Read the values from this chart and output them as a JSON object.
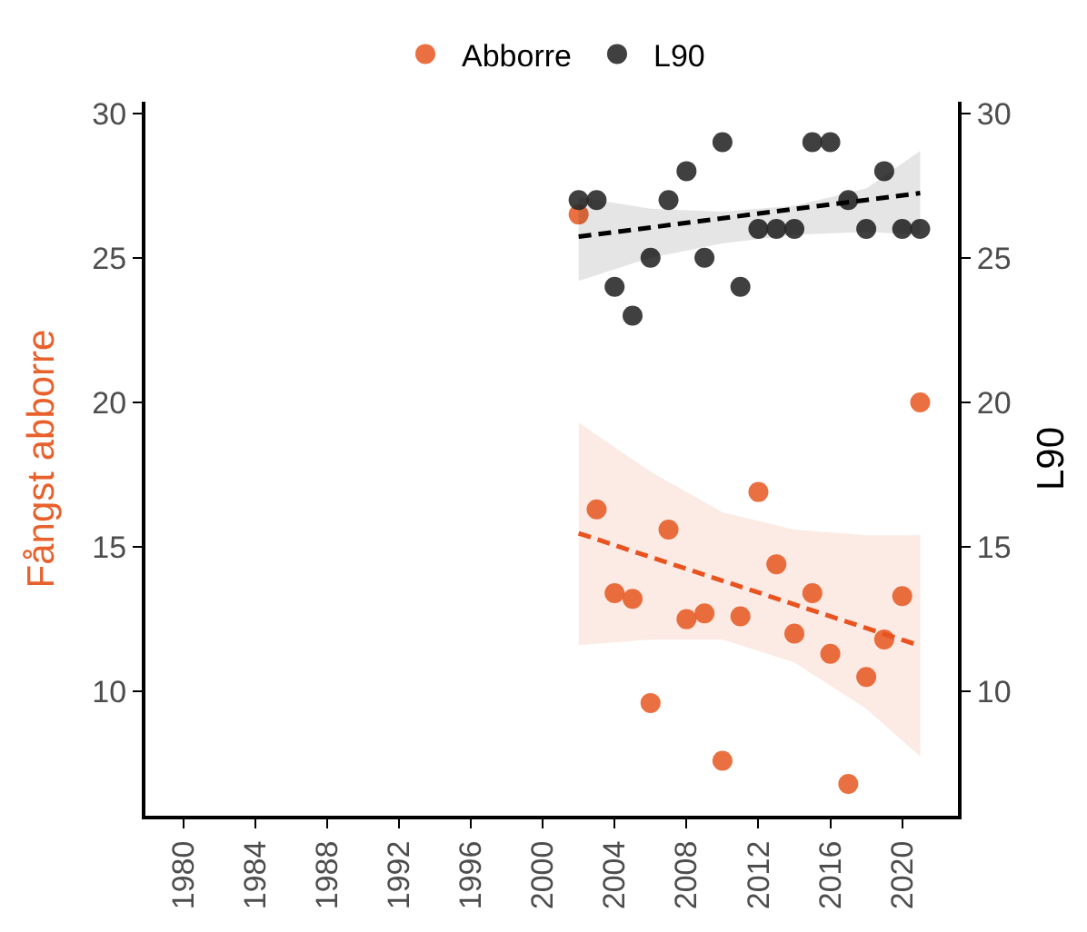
{
  "chart_data": {
    "type": "scatter",
    "ylabel": "Fångst abborre",
    "y2label": "L90",
    "x": [
      2002,
      2003,
      2004,
      2005,
      2006,
      2007,
      2008,
      2009,
      2010,
      2011,
      2012,
      2013,
      2014,
      2015,
      2016,
      2017,
      2018,
      2019,
      2020,
      2021
    ],
    "series": [
      {
        "name": "Abborre",
        "color": "#e8612c",
        "marker": "circle",
        "values": [
          26.5,
          16.3,
          13.4,
          13.2,
          9.6,
          15.6,
          12.5,
          12.7,
          7.6,
          12.6,
          16.9,
          14.4,
          12.0,
          13.4,
          11.3,
          6.8,
          10.5,
          11.8,
          13.3,
          20.0
        ]
      },
      {
        "name": "L90",
        "color": "#2b2b2b",
        "axis": "y2",
        "marker": "circle",
        "values": [
          27,
          27,
          24,
          23,
          25,
          27,
          28,
          25,
          29,
          24,
          26,
          26,
          26,
          29,
          29,
          27,
          26,
          28,
          26,
          26
        ]
      },
      {
        "type": "line",
        "color": "#e8531f",
        "line_style": "dashed",
        "x": [
          2002,
          2006,
          2010,
          2014,
          2018,
          2021
        ],
        "values": [
          15.47,
          14.65,
          13.83,
          13.01,
          12.19,
          11.58
        ],
        "lower": [
          11.6,
          11.8,
          11.8,
          11.0,
          9.4,
          7.75
        ],
        "upper": [
          19.3,
          17.6,
          16.2,
          15.6,
          15.4,
          15.4
        ]
      },
      {
        "type": "line",
        "color": "#000000",
        "line_style": "dashed",
        "axis": "y2",
        "x": [
          2002,
          2006,
          2010,
          2014,
          2018,
          2021
        ],
        "values": [
          25.73,
          26.05,
          26.37,
          26.69,
          27.0,
          27.24
        ],
        "lower": [
          24.2,
          25.0,
          25.5,
          25.8,
          25.9,
          25.8
        ],
        "upper": [
          27.1,
          26.7,
          26.6,
          26.8,
          27.4,
          28.7
        ]
      }
    ],
    "xlim": [
      1977.9,
      2023.1
    ],
    "xticks": [
      1980,
      1984,
      1988,
      1992,
      1996,
      2000,
      2004,
      2008,
      2012,
      2016,
      2020
    ],
    "ylim": [
      5.7,
      30.4
    ],
    "yticks": [
      10,
      15,
      20,
      25,
      30
    ],
    "y2lim": [
      5.7,
      30.4
    ],
    "y2ticks": [
      10,
      15,
      20,
      25,
      30
    ],
    "legend": "top"
  }
}
